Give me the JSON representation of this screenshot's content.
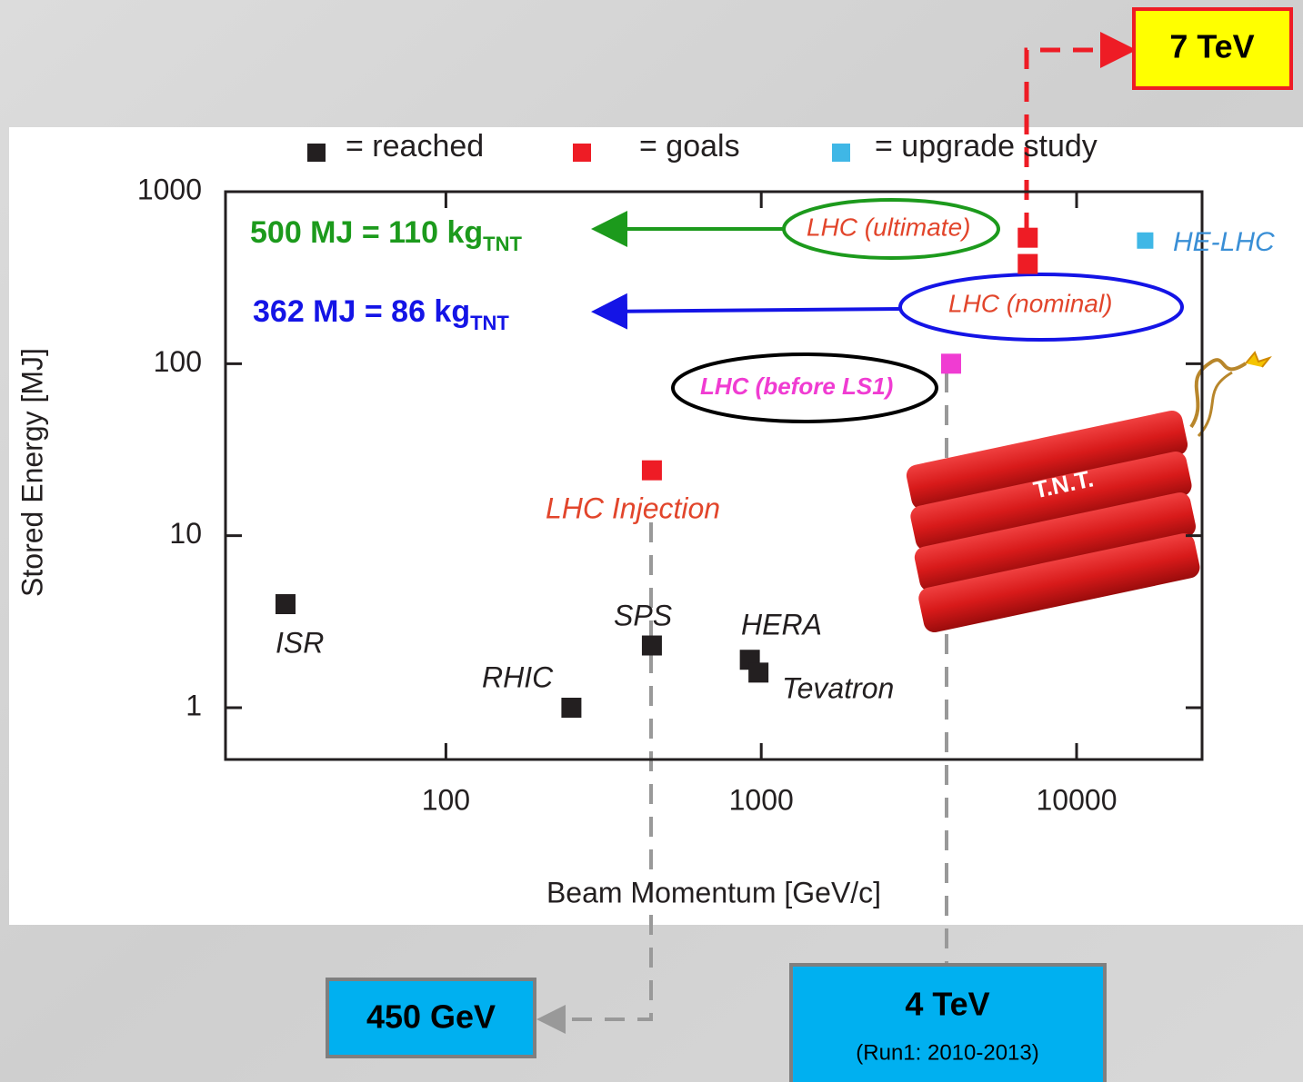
{
  "chart_data": {
    "type": "scatter",
    "x_label": "Beam Momentum [GeV/c]",
    "y_label": "Stored Energy [MJ]",
    "xscale": "log",
    "yscale": "log",
    "xlim": [
      20,
      25000
    ],
    "ylim": [
      0.5,
      1000
    ],
    "xticks": [
      100,
      1000,
      10000
    ],
    "yticks": [
      1,
      10,
      100,
      1000
    ],
    "series": [
      {
        "name": "= reached",
        "color": "#231f20",
        "x": [
          31,
          250,
          450,
          920,
          980
        ],
        "values": [
          4.0,
          1.0,
          2.3,
          1.9,
          1.6
        ],
        "labels": [
          "ISR",
          "RHIC",
          "SPS",
          "HERA",
          "Tevatron"
        ],
        "label_color": "#231f20"
      },
      {
        "name": "= goals",
        "color": "#ee1c25",
        "x": [
          450,
          7000,
          7000
        ],
        "values": [
          24,
          540,
          380
        ],
        "labels": [
          "LHC Injection",
          "LHC (ultimate)",
          "LHC (nominal)"
        ],
        "label_color": "#e2452b"
      },
      {
        "name": "= upgrade study",
        "color": "#3fb7e6",
        "x": [
          16500
        ],
        "values": [
          520
        ],
        "labels": [
          "HE-LHC"
        ],
        "label_color": "#3a8fd6"
      },
      {
        "color": "#f03cd2",
        "x": [
          4000
        ],
        "values": [
          100
        ],
        "labels": [
          "LHC (before LS1)"
        ],
        "label_color": "#f03cd2"
      }
    ],
    "annotations": [
      {
        "text": "500 MJ = 110 kg",
        "sub": "TNT",
        "color": "#1c9a1c"
      },
      {
        "text": "362 MJ = 86 kg",
        "sub": "TNT",
        "color": "#1414e6"
      }
    ],
    "callouts": [
      {
        "title": "7 TeV"
      },
      {
        "title": "450 GeV"
      },
      {
        "title": "4 TeV",
        "note": "(Run1: 2010-2013)"
      }
    ],
    "image_label": "T.N.T."
  }
}
